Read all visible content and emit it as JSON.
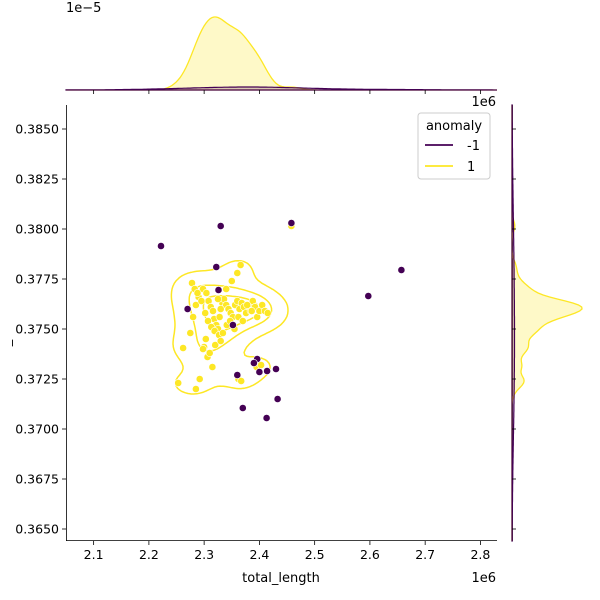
{
  "chart_data": {
    "type": "scatter",
    "xlabel": "total_length",
    "ylabel": "_",
    "xlim": [
      2050000,
      2830000
    ],
    "ylim": [
      0.3644,
      0.3862
    ],
    "x_ticks": [
      2100000,
      2200000,
      2300000,
      2400000,
      2500000,
      2600000,
      2700000,
      2800000
    ],
    "x_tick_labels": [
      "2.1",
      "2.2",
      "2.3",
      "2.4",
      "2.5",
      "2.6",
      "2.7",
      "2.8"
    ],
    "y_ticks": [
      0.365,
      0.3675,
      0.37,
      0.3725,
      0.375,
      0.3775,
      0.38,
      0.3825,
      0.385
    ],
    "y_tick_labels": [
      "0.3650",
      "0.3675",
      "0.3700",
      "0.3725",
      "0.3750",
      "0.3775",
      "0.3800",
      "0.3825",
      "0.3850"
    ],
    "x_offset_label": "1e6",
    "top_x_offset_label": "1e6",
    "top_marginal_offset_label": "1e−5",
    "grid": false,
    "legend": {
      "title": "anomaly",
      "placement": "top-right",
      "entries": [
        {
          "label": "-1",
          "color": "#440154"
        },
        {
          "label": "1",
          "color": "#fde725"
        }
      ]
    },
    "series": [
      {
        "name": "-1",
        "color": "#440154",
        "x": [
          2222000,
          2330000,
          2458000,
          2657000,
          2597000,
          2322000,
          2326000,
          2352000,
          2396000,
          2414000,
          2430000,
          2400000,
          2360000,
          2370000,
          2433000,
          2413000,
          2390000,
          2270000
        ],
        "y": [
          0.37915,
          0.38015,
          0.3803,
          0.37795,
          0.37665,
          0.3781,
          0.37695,
          0.3752,
          0.3735,
          0.3729,
          0.373,
          0.37285,
          0.3727,
          0.37105,
          0.3715,
          0.37055,
          0.3733,
          0.376
        ]
      },
      {
        "name": "1",
        "color": "#fde725",
        "x": [
          2458000,
          2253000,
          2262000,
          2275000,
          2280000,
          2285000,
          2290000,
          2298000,
          2304000,
          2308000,
          2312000,
          2316000,
          2318000,
          2322000,
          2325000,
          2328000,
          2330000,
          2333000,
          2336000,
          2340000,
          2344000,
          2348000,
          2352000,
          2356000,
          2360000,
          2364000,
          2368000,
          2372000,
          2376000,
          2380000,
          2384000,
          2388000,
          2392000,
          2396000,
          2400000,
          2405000,
          2410000,
          2415000,
          2278000,
          2283000,
          2288000,
          2295000,
          2302000,
          2307000,
          2313000,
          2319000,
          2327000,
          2334000,
          2341000,
          2347000,
          2355000,
          2362000,
          2370000,
          2378000,
          2386000,
          2300000,
          2306000,
          2315000,
          2285000,
          2292000,
          2298000,
          2303000,
          2310000,
          2320000,
          2330000,
          2340000,
          2350000,
          2360000,
          2366000,
          2395000,
          2403000,
          2362000,
          2367000,
          2330000,
          2325000
        ],
        "y": [
          0.38015,
          0.3723,
          0.37405,
          0.3748,
          0.3756,
          0.3762,
          0.3766,
          0.377,
          0.3768,
          0.3764,
          0.3761,
          0.3759,
          0.3755,
          0.3752,
          0.375,
          0.3756,
          0.376,
          0.3763,
          0.3765,
          0.3762,
          0.376,
          0.3758,
          0.3756,
          0.3762,
          0.3764,
          0.376,
          0.3763,
          0.3761,
          0.3758,
          0.3762,
          0.3759,
          0.3764,
          0.3761,
          0.3756,
          0.3759,
          0.3762,
          0.3759,
          0.3758,
          0.3773,
          0.377,
          0.3768,
          0.3764,
          0.3758,
          0.3754,
          0.3751,
          0.3749,
          0.3747,
          0.3748,
          0.3752,
          0.3754,
          0.375,
          0.3756,
          0.3754,
          0.3762,
          0.3759,
          0.3741,
          0.3736,
          0.3731,
          0.372,
          0.3725,
          0.374,
          0.3745,
          0.3738,
          0.3742,
          0.3744,
          0.377,
          0.3774,
          0.3778,
          0.3782,
          0.3731,
          0.3732,
          0.3725,
          0.3724,
          0.376,
          0.3765
        ]
      }
    ],
    "kde_contours_label": "1"
  }
}
